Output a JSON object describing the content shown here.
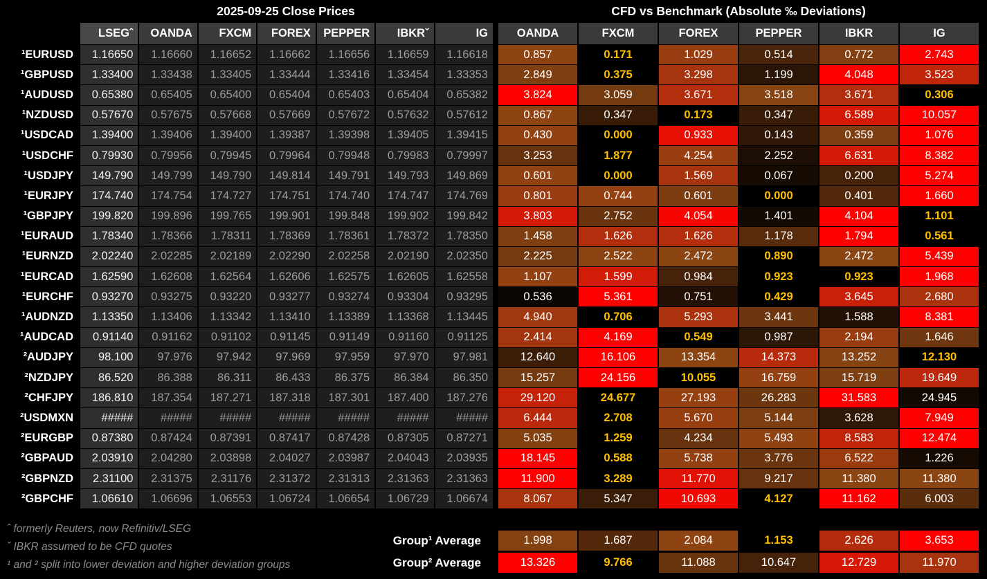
{
  "chart_data": {
    "type": "heatmap",
    "title_left": "2025-09-25 Close Prices",
    "title_right": "CFD vs Benchmark (Absolute ‰ Deviations)",
    "price_columns": [
      "LSEGˆ",
      "OANDA",
      "FXCM",
      "FOREX",
      "PEPPER",
      "IBKRˇ",
      "IG"
    ],
    "deviation_columns": [
      "OANDA",
      "FXCM",
      "FOREX",
      "PEPPER",
      "IBKR",
      "IG"
    ],
    "rows": [
      {
        "pair": "¹EURUSD",
        "prices": [
          "1.16650",
          "1.16660",
          "1.16652",
          "1.16662",
          "1.16656",
          "1.16659",
          "1.16618"
        ],
        "deviations": [
          "0.857",
          "0.171",
          "1.029",
          "0.514",
          "0.772",
          "2.743"
        ]
      },
      {
        "pair": "¹GBPUSD",
        "prices": [
          "1.33400",
          "1.33438",
          "1.33405",
          "1.33444",
          "1.33416",
          "1.33454",
          "1.33353"
        ],
        "deviations": [
          "2.849",
          "0.375",
          "3.298",
          "1.199",
          "4.048",
          "3.523"
        ]
      },
      {
        "pair": "¹AUDUSD",
        "prices": [
          "0.65380",
          "0.65405",
          "0.65400",
          "0.65404",
          "0.65403",
          "0.65404",
          "0.65382"
        ],
        "deviations": [
          "3.824",
          "3.059",
          "3.671",
          "3.518",
          "3.671",
          "0.306"
        ]
      },
      {
        "pair": "¹NZDUSD",
        "prices": [
          "0.57670",
          "0.57675",
          "0.57668",
          "0.57669",
          "0.57672",
          "0.57632",
          "0.57612"
        ],
        "deviations": [
          "0.867",
          "0.347",
          "0.173",
          "0.347",
          "6.589",
          "10.057"
        ]
      },
      {
        "pair": "¹USDCAD",
        "prices": [
          "1.39400",
          "1.39406",
          "1.39400",
          "1.39387",
          "1.39398",
          "1.39405",
          "1.39415"
        ],
        "deviations": [
          "0.430",
          "0.000",
          "0.933",
          "0.143",
          "0.359",
          "1.076"
        ]
      },
      {
        "pair": "¹USDCHF",
        "prices": [
          "0.79930",
          "0.79956",
          "0.79945",
          "0.79964",
          "0.79948",
          "0.79983",
          "0.79997"
        ],
        "deviations": [
          "3.253",
          "1.877",
          "4.254",
          "2.252",
          "6.631",
          "8.382"
        ]
      },
      {
        "pair": "¹USDJPY",
        "prices": [
          "149.790",
          "149.799",
          "149.790",
          "149.814",
          "149.791",
          "149.793",
          "149.869"
        ],
        "deviations": [
          "0.601",
          "0.000",
          "1.569",
          "0.067",
          "0.200",
          "5.274"
        ]
      },
      {
        "pair": "¹EURJPY",
        "prices": [
          "174.740",
          "174.754",
          "174.727",
          "174.751",
          "174.740",
          "174.747",
          "174.769"
        ],
        "deviations": [
          "0.801",
          "0.744",
          "0.601",
          "0.000",
          "0.401",
          "1.660"
        ]
      },
      {
        "pair": "¹GBPJPY",
        "prices": [
          "199.820",
          "199.896",
          "199.765",
          "199.901",
          "199.848",
          "199.902",
          "199.842"
        ],
        "deviations": [
          "3.803",
          "2.752",
          "4.054",
          "1.401",
          "4.104",
          "1.101"
        ]
      },
      {
        "pair": "¹EURAUD",
        "prices": [
          "1.78340",
          "1.78366",
          "1.78311",
          "1.78369",
          "1.78361",
          "1.78372",
          "1.78350"
        ],
        "deviations": [
          "1.458",
          "1.626",
          "1.626",
          "1.178",
          "1.794",
          "0.561"
        ]
      },
      {
        "pair": "¹EURNZD",
        "prices": [
          "2.02240",
          "2.02285",
          "2.02189",
          "2.02290",
          "2.02258",
          "2.02190",
          "2.02350"
        ],
        "deviations": [
          "2.225",
          "2.522",
          "2.472",
          "0.890",
          "2.472",
          "5.439"
        ]
      },
      {
        "pair": "¹EURCAD",
        "prices": [
          "1.62590",
          "1.62608",
          "1.62564",
          "1.62606",
          "1.62575",
          "1.62605",
          "1.62558"
        ],
        "deviations": [
          "1.107",
          "1.599",
          "0.984",
          "0.923",
          "0.923",
          "1.968"
        ]
      },
      {
        "pair": "¹EURCHF",
        "prices": [
          "0.93270",
          "0.93275",
          "0.93220",
          "0.93277",
          "0.93274",
          "0.93304",
          "0.93295"
        ],
        "deviations": [
          "0.536",
          "5.361",
          "0.751",
          "0.429",
          "3.645",
          "2.680"
        ]
      },
      {
        "pair": "¹AUDNZD",
        "prices": [
          "1.13350",
          "1.13406",
          "1.13342",
          "1.13410",
          "1.13389",
          "1.13368",
          "1.13445"
        ],
        "deviations": [
          "4.940",
          "0.706",
          "5.293",
          "3.441",
          "1.588",
          "8.381"
        ]
      },
      {
        "pair": "¹AUDCAD",
        "prices": [
          "0.91140",
          "0.91162",
          "0.91102",
          "0.91145",
          "0.91149",
          "0.91160",
          "0.91125"
        ],
        "deviations": [
          "2.414",
          "4.169",
          "0.549",
          "0.987",
          "2.194",
          "1.646"
        ]
      },
      {
        "pair": "²AUDJPY",
        "prices": [
          "98.100",
          "97.976",
          "97.942",
          "97.969",
          "97.959",
          "97.970",
          "97.981"
        ],
        "deviations": [
          "12.640",
          "16.106",
          "13.354",
          "14.373",
          "13.252",
          "12.130"
        ]
      },
      {
        "pair": "²NZDJPY",
        "prices": [
          "86.520",
          "86.388",
          "86.311",
          "86.433",
          "86.375",
          "86.384",
          "86.350"
        ],
        "deviations": [
          "15.257",
          "24.156",
          "10.055",
          "16.759",
          "15.719",
          "19.649"
        ]
      },
      {
        "pair": "²CHFJPY",
        "prices": [
          "186.810",
          "187.354",
          "187.271",
          "187.318",
          "187.301",
          "187.400",
          "187.276"
        ],
        "deviations": [
          "29.120",
          "24.677",
          "27.193",
          "26.283",
          "31.583",
          "24.945"
        ]
      },
      {
        "pair": "²USDMXN",
        "prices": [
          "#####",
          "#####",
          "#####",
          "#####",
          "#####",
          "#####",
          "#####"
        ],
        "deviations": [
          "6.444",
          "2.708",
          "5.670",
          "5.144",
          "3.628",
          "7.949"
        ]
      },
      {
        "pair": "²EURGBP",
        "prices": [
          "0.87380",
          "0.87424",
          "0.87391",
          "0.87417",
          "0.87428",
          "0.87305",
          "0.87271"
        ],
        "deviations": [
          "5.035",
          "1.259",
          "4.234",
          "5.493",
          "8.583",
          "12.474"
        ]
      },
      {
        "pair": "²GBPAUD",
        "prices": [
          "2.03910",
          "2.04280",
          "2.03898",
          "2.04027",
          "2.03987",
          "2.04043",
          "2.03935"
        ],
        "deviations": [
          "18.145",
          "0.588",
          "5.738",
          "3.776",
          "6.522",
          "1.226"
        ]
      },
      {
        "pair": "²GBPNZD",
        "prices": [
          "2.31100",
          "2.31375",
          "2.31176",
          "2.31372",
          "2.31313",
          "2.31363",
          "2.31363"
        ],
        "deviations": [
          "11.900",
          "3.289",
          "11.770",
          "9.217",
          "11.380",
          "11.380"
        ]
      },
      {
        "pair": "²GBPCHF",
        "prices": [
          "1.06610",
          "1.06696",
          "1.06553",
          "1.06724",
          "1.06654",
          "1.06729",
          "1.06674"
        ],
        "deviations": [
          "8.067",
          "5.347",
          "10.693",
          "4.127",
          "11.162",
          "6.003"
        ]
      }
    ],
    "group_averages": [
      {
        "label": "Group¹ Average",
        "values": [
          "1.998",
          "1.687",
          "2.084",
          "1.153",
          "2.626",
          "3.653"
        ]
      },
      {
        "label": "Group² Average",
        "values": [
          "13.326",
          "9.766",
          "11.088",
          "10.647",
          "12.729",
          "11.970"
        ]
      }
    ],
    "footnotes": [
      "ˆ formerly Reuters, now Refinitiv/LSEG",
      "ˇ IBKR assumed to be CFD quotes",
      "¹ and ² split into lower deviation and higher deviation groups"
    ],
    "color_scale": {
      "description": "per-row 3-color scale: min -> median -> max; row minimum shown bold gold on black",
      "min": "#000000",
      "mid": "#8B4513",
      "max": "#FF0000",
      "min_text": "#FFC000",
      "normal_text": "#FFFFFF"
    },
    "theme": {
      "page_bg": "#000000",
      "header_bg": "#3A3A3A",
      "benchmark_header_bg": "#484848",
      "benchmark_cell_bg": "#2F2F2F",
      "benchmark_cell_text": "#F2F2F2",
      "price_cell_bg": "#1E1E1E",
      "price_cell_text": "#9C9C9C",
      "row_label_text": "#FFFFFF",
      "footnote_text": "#8D8D8D"
    }
  }
}
